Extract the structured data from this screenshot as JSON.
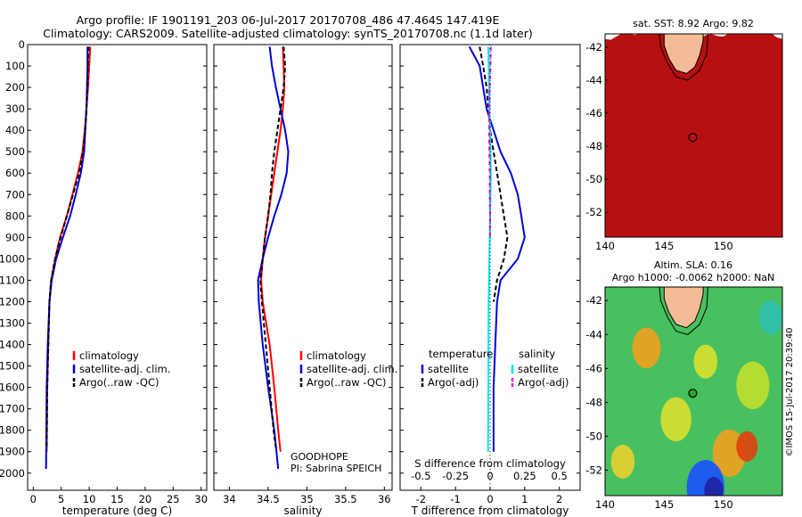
{
  "title_line1": "Argo profile: IF 1901191_203 06-Jul-2017 20170708_486 47.464S 147.419E",
  "title_line2": "Climatology: CARS2009. Satellite-adjusted climatology: synTS_20170708.nc (1.1d later)",
  "colors": {
    "climatology": "#ff0000",
    "satellite": "#0000dd",
    "argo": "#000000",
    "cyan": "#00e5ee",
    "magenta": "#dd22dd",
    "land": "#f4bc96"
  },
  "chart_data": [
    {
      "type": "line",
      "panel": "temperature",
      "xlabel": "temperature (deg C)",
      "xlim": [
        -1,
        31
      ],
      "ylim": [
        0,
        2080
      ],
      "y_reversed": true,
      "xticks": [
        0,
        5,
        10,
        15,
        20,
        25,
        30
      ],
      "yticks": [
        0,
        100,
        200,
        300,
        400,
        500,
        600,
        700,
        800,
        900,
        1000,
        1100,
        1200,
        1300,
        1400,
        1500,
        1600,
        1700,
        1800,
        1900,
        2000
      ],
      "legend": [
        "climatology",
        "satellite-adj. clim.",
        "Argo(..raw -QC)"
      ],
      "series": [
        {
          "name": "climatology",
          "color": "#ff0000",
          "dash": "",
          "x": [
            10.2,
            10.0,
            9.8,
            9.5,
            9.2,
            8.8,
            8.0,
            7.0,
            6.0,
            4.8,
            3.9,
            3.2,
            2.9,
            2.7,
            2.5,
            2.4
          ],
          "y": [
            10,
            100,
            200,
            300,
            400,
            500,
            600,
            700,
            800,
            900,
            1000,
            1100,
            1200,
            1400,
            1600,
            1900
          ]
        },
        {
          "name": "satellite-adj. clim.",
          "color": "#0000dd",
          "dash": "",
          "x": [
            9.7,
            9.7,
            9.6,
            9.5,
            9.3,
            9.1,
            8.5,
            7.6,
            6.6,
            5.3,
            4.1,
            3.3,
            2.9,
            2.6,
            2.4,
            2.3
          ],
          "y": [
            10,
            100,
            200,
            300,
            400,
            500,
            600,
            700,
            800,
            900,
            1000,
            1100,
            1200,
            1400,
            1600,
            1980
          ]
        },
        {
          "name": "Argo(..raw -QC)",
          "color": "#000000",
          "dash": "5,3",
          "x": [
            9.9,
            9.8,
            9.7,
            9.5,
            9.3,
            8.9,
            8.2,
            7.1,
            6.0,
            4.9,
            3.9,
            3.2,
            2.9,
            2.7,
            2.5,
            2.4
          ],
          "y": [
            10,
            100,
            200,
            300,
            400,
            500,
            600,
            700,
            800,
            900,
            1000,
            1100,
            1200,
            1400,
            1600,
            1880
          ]
        }
      ]
    },
    {
      "type": "line",
      "panel": "salinity",
      "xlabel": "salinity",
      "xlim": [
        33.8,
        36.1
      ],
      "ylim": [
        0,
        2080
      ],
      "y_reversed": true,
      "xticks": [
        34,
        34.5,
        35,
        35.5,
        36
      ],
      "xticklabels": [
        "34",
        "34.5",
        "35",
        "35.5",
        "36"
      ],
      "legend": [
        "climatology",
        "satellite-adj. clim.",
        "Argo(..raw -QC)"
      ],
      "annotations": [
        "GOODHOPE",
        "PI: Sabrina SPEICH"
      ],
      "series": [
        {
          "name": "climatology",
          "color": "#ff0000",
          "dash": "",
          "x": [
            34.69,
            34.7,
            34.71,
            34.69,
            34.66,
            34.62,
            34.58,
            34.54,
            34.5,
            34.46,
            34.43,
            34.41,
            34.43,
            34.52,
            34.58,
            34.63,
            34.66
          ],
          "y": [
            10,
            100,
            200,
            300,
            400,
            500,
            600,
            700,
            800,
            900,
            1000,
            1100,
            1200,
            1400,
            1600,
            1800,
            1900
          ]
        },
        {
          "name": "satellite-adj. clim.",
          "color": "#0000dd",
          "dash": "",
          "x": [
            34.52,
            34.55,
            34.6,
            34.66,
            34.72,
            34.76,
            34.74,
            34.67,
            34.58,
            34.5,
            34.43,
            34.37,
            34.38,
            34.43,
            34.5,
            34.58,
            34.63
          ],
          "y": [
            10,
            100,
            200,
            300,
            400,
            500,
            600,
            700,
            800,
            900,
            1000,
            1100,
            1200,
            1400,
            1600,
            1800,
            1980
          ]
        },
        {
          "name": "Argo(..raw -QC)",
          "color": "#000000",
          "dash": "5,3",
          "x": [
            34.7,
            34.72,
            34.7,
            34.66,
            34.62,
            34.58,
            34.55,
            34.53,
            34.5,
            34.46,
            34.43,
            34.4,
            34.42,
            34.47,
            34.52,
            34.57,
            34.6
          ],
          "y": [
            10,
            100,
            200,
            300,
            400,
            500,
            600,
            700,
            800,
            900,
            1000,
            1100,
            1200,
            1400,
            1600,
            1800,
            1880
          ]
        }
      ]
    },
    {
      "type": "line",
      "panel": "difference",
      "xlabel": "T difference from climatology",
      "x2label": "S difference from climatology",
      "xlim": [
        -2.6,
        2.6
      ],
      "ylim": [
        0,
        2080
      ],
      "y_reversed": true,
      "xticks": [
        -2,
        -1,
        0,
        1,
        2
      ],
      "x2ticks": [
        -0.5,
        -0.25,
        0,
        0.25,
        0.5
      ],
      "x2ticklabels": [
        "-0.5",
        "-0.25",
        "0",
        "0.25",
        "0.5"
      ],
      "legend_temperature": {
        "title": "temperature",
        "items": [
          "satellite",
          "Argo(-adj)"
        ]
      },
      "legend_salinity": {
        "title": "salinity",
        "items": [
          "satellite",
          "Argo(-adj)"
        ]
      },
      "series": [
        {
          "name": "temperature satellite",
          "color": "#0000dd",
          "dash": "",
          "x": [
            -0.6,
            -0.3,
            -0.2,
            -0.1,
            0.1,
            0.3,
            0.6,
            0.8,
            0.9,
            1.0,
            0.8,
            0.3,
            0.2,
            0.15,
            0.1,
            0.1
          ],
          "y": [
            10,
            100,
            200,
            300,
            400,
            500,
            600,
            700,
            800,
            900,
            1000,
            1100,
            1200,
            1400,
            1600,
            1900
          ]
        },
        {
          "name": "temperature Argo(-adj)",
          "color": "#000000",
          "dash": "5,3",
          "x": [
            -0.3,
            -0.2,
            -0.1,
            -0.05,
            0.0,
            0.1,
            0.2,
            0.3,
            0.4,
            0.5,
            0.4,
            0.2,
            0.1
          ],
          "y": [
            10,
            100,
            200,
            300,
            400,
            500,
            600,
            700,
            800,
            900,
            1000,
            1100,
            1200
          ]
        },
        {
          "name": "salinity satellite",
          "color": "#00e5ee",
          "dash": "",
          "x": [
            -0.05,
            -0.04,
            -0.03,
            -0.02,
            0.0,
            0.01,
            0.02,
            0.01,
            0.0,
            -0.01,
            -0.02,
            -0.03,
            -0.04,
            -0.05,
            -0.05,
            -0.06
          ],
          "y": [
            10,
            100,
            200,
            300,
            400,
            500,
            600,
            700,
            800,
            900,
            1000,
            1100,
            1200,
            1400,
            1600,
            1900
          ]
        },
        {
          "name": "salinity Argo(-adj)",
          "color": "#dd22dd",
          "dash": "5,3",
          "x": [
            0.02,
            0.01,
            -0.01,
            -0.02,
            -0.03,
            -0.02,
            -0.01,
            -0.01,
            0.0,
            0.0
          ],
          "y": [
            10,
            100,
            200,
            300,
            400,
            500,
            600,
            700,
            800,
            900
          ]
        }
      ]
    },
    {
      "type": "heatmap",
      "panel": "sst-map",
      "title": "sat. SST: 8.92  Argo: 9.82",
      "xlim": [
        140,
        155
      ],
      "ylim": [
        -53.5,
        -41.2
      ],
      "xticks": [
        140,
        145,
        150
      ],
      "yticks": [
        -42,
        -44,
        -46,
        -48,
        -50,
        -52
      ],
      "argo_position": {
        "lon": 147.419,
        "lat": -47.464
      },
      "bands_lat": [
        -53.5,
        -51.5,
        -50.5,
        -49.2,
        -48.2,
        -47.0,
        -45.5,
        -43.5,
        -41.2
      ],
      "band_colors": [
        "#0a0a9a",
        "#1a5cff",
        "#22c8e8",
        "#3ce07a",
        "#b8e830",
        "#f0c020",
        "#e06010",
        "#b81010"
      ]
    },
    {
      "type": "heatmap",
      "panel": "sla-map",
      "title_line1": "Altim. SLA: 0.16",
      "title_line2": "Argo h1000: -0.0062 h2000: NaN",
      "xlim": [
        140,
        155
      ],
      "ylim": [
        -53.5,
        -41.2
      ],
      "xticks": [
        140,
        145,
        150
      ],
      "yticks": [
        -42,
        -44,
        -46,
        -48,
        -50,
        -52
      ],
      "argo_position": {
        "lon": 147.419,
        "lat": -47.464
      },
      "blobs": [
        {
          "lon": 143.5,
          "lat": -44.8,
          "r": 1.2,
          "color": "#f0a020"
        },
        {
          "lon": 148.5,
          "lat": -45.6,
          "r": 1.0,
          "color": "#d8e030"
        },
        {
          "lon": 152.5,
          "lat": -47.0,
          "r": 1.4,
          "color": "#c0e030"
        },
        {
          "lon": 146.0,
          "lat": -49.0,
          "r": 1.3,
          "color": "#d8e030"
        },
        {
          "lon": 150.5,
          "lat": -51.0,
          "r": 1.4,
          "color": "#f0a020"
        },
        {
          "lon": 152.0,
          "lat": -50.6,
          "r": 0.9,
          "color": "#e04010"
        },
        {
          "lon": 148.5,
          "lat": -53.0,
          "r": 1.6,
          "color": "#1a50ff"
        },
        {
          "lon": 149.2,
          "lat": -53.2,
          "r": 0.8,
          "color": "#2020a0"
        },
        {
          "lon": 141.5,
          "lat": -51.5,
          "r": 1.0,
          "color": "#e8d030"
        },
        {
          "lon": 154.0,
          "lat": -43.0,
          "r": 1.0,
          "color": "#30c0b0"
        }
      ]
    }
  ],
  "footer_stamp": "©IMOS 15-Jul-2017 20:39:40"
}
